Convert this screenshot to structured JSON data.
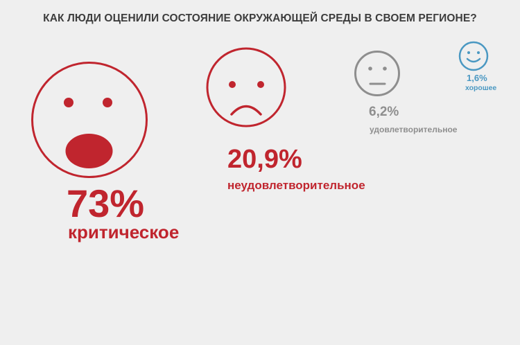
{
  "title": "КАК ЛЮДИ ОЦЕНИЛИ СОСТОЯНИЕ ОКРУЖАЮЩЕЙ СРЕДЫ В СВОЕМ РЕГИОНЕ?",
  "colors": {
    "critical": "#c0252e",
    "unsatisfactory": "#c0252e",
    "satisfactory": "#8e8e8e",
    "good": "#4a98c2",
    "background": "#efefef"
  },
  "chart_data": {
    "type": "pictogram",
    "title": "КАК ЛЮДИ ОЦЕНИЛИ СОСТОЯНИЕ ОКРУЖАЮЩЕЙ СРЕДЫ В СВОЕМ РЕГИОНЕ?",
    "unit": "%",
    "categories": [
      "критическое",
      "неудовлетворительное",
      "удовлетворительное",
      "хорошее"
    ],
    "values": [
      73,
      20.9,
      6.2,
      1.6
    ],
    "value_labels": [
      "73%",
      "20,9%",
      "6,2%",
      "1,6%"
    ],
    "icons": [
      "shocked-face-icon",
      "sad-face-icon",
      "neutral-face-icon",
      "happy-face-icon"
    ]
  }
}
